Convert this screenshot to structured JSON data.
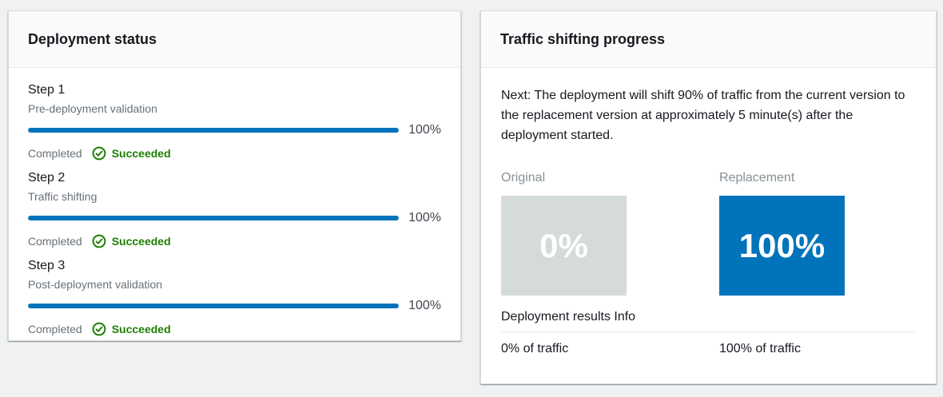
{
  "colors": {
    "accent_blue": "#0073bb",
    "success_green": "#1d8102",
    "original_box_gray": "#d5dbdb",
    "page_background": "#f0f1f2"
  },
  "deployment_status": {
    "title": "Deployment status",
    "steps": [
      {
        "name": "Step 1",
        "description": "Pre-deployment validation",
        "progress_percent": 100,
        "progress_label": "100%",
        "status_label": "Completed",
        "result_label": "Succeeded"
      },
      {
        "name": "Step 2",
        "description": "Traffic shifting",
        "progress_percent": 100,
        "progress_label": "100%",
        "status_label": "Completed",
        "result_label": "Succeeded"
      },
      {
        "name": "Step 3",
        "description": "Post-deployment validation",
        "progress_percent": 100,
        "progress_label": "100%",
        "status_label": "Completed",
        "result_label": "Succeeded"
      }
    ]
  },
  "traffic_shifting": {
    "title": "Traffic shifting progress",
    "next_message": "Next: The deployment will shift 90% of traffic from the current version to the replacement version at approximately 5 minute(s) after the deployment started.",
    "results_label": "Deployment results Info",
    "original": {
      "label": "Original",
      "percent": "0%",
      "traffic": "0% of traffic",
      "box_color": "#d5dbdb"
    },
    "replacement": {
      "label": "Replacement",
      "percent": "100%",
      "traffic": "100% of traffic",
      "box_color": "#0073bb"
    }
  }
}
